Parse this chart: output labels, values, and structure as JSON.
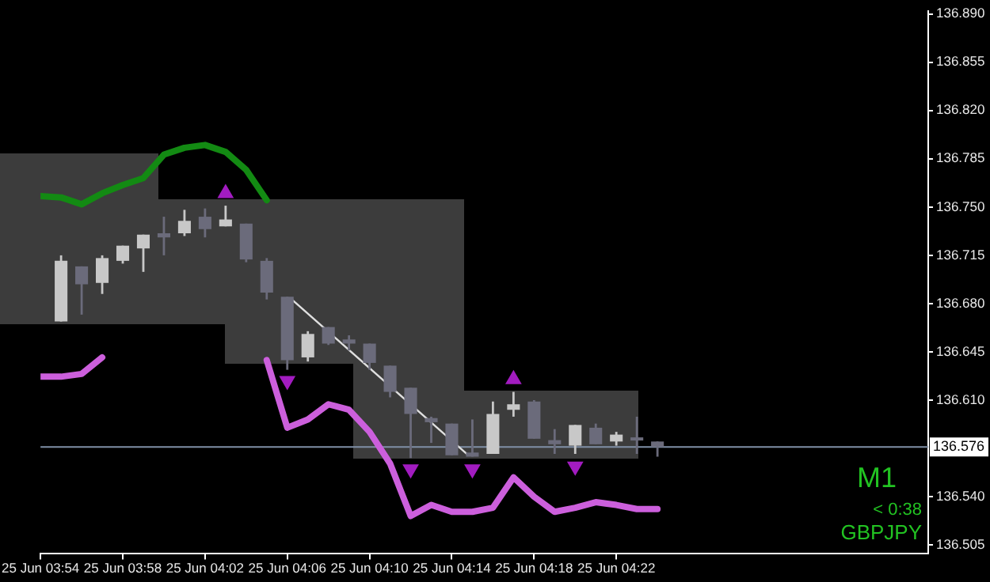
{
  "chart_data": {
    "type": "candlestick",
    "x": [
      "--06-25T03:55",
      "--06-25T03:56",
      "--06-25T03:57",
      "--06-25T03:58",
      "--06-25T03:59",
      "--06-25T04:00",
      "--06-25T04:01",
      "--06-25T04:02",
      "--06-25T04:03",
      "--06-25T04:04",
      "--06-25T04:05",
      "--06-25T04:06",
      "--06-25T04:07",
      "--06-25T04:08",
      "--06-25T04:09",
      "--06-25T04:10",
      "--06-25T04:11",
      "--06-25T04:12",
      "--06-25T04:13",
      "--06-25T04:14",
      "--06-25T04:15",
      "--06-25T04:16",
      "--06-25T04:17",
      "--06-25T04:18",
      "--06-25T04:19",
      "--06-25T04:20",
      "--06-25T04:21",
      "--06-25T04:22",
      "--06-25T04:23",
      "--06-25T04:24"
    ],
    "ohlc": [
      [
        136.667,
        136.715,
        136.667,
        136.711
      ],
      [
        136.707,
        136.707,
        136.672,
        136.694
      ],
      [
        136.695,
        136.715,
        136.687,
        136.713
      ],
      [
        136.711,
        136.722,
        136.709,
        136.722
      ],
      [
        136.72,
        136.73,
        136.703,
        136.73
      ],
      [
        136.731,
        136.743,
        136.715,
        136.728
      ],
      [
        136.731,
        136.748,
        136.729,
        136.74
      ],
      [
        136.743,
        136.749,
        136.728,
        136.734
      ],
      [
        136.736,
        136.751,
        136.736,
        136.741
      ],
      [
        136.738,
        136.738,
        136.71,
        136.712
      ],
      [
        136.711,
        136.713,
        136.683,
        136.688
      ],
      [
        136.685,
        136.685,
        136.632,
        136.639
      ],
      [
        136.641,
        136.66,
        136.638,
        136.658
      ],
      [
        136.663,
        136.663,
        136.65,
        136.651
      ],
      [
        136.654,
        136.657,
        136.646,
        136.651
      ],
      [
        136.651,
        136.651,
        136.632,
        136.637
      ],
      [
        136.635,
        136.635,
        136.612,
        136.616
      ],
      [
        136.619,
        136.619,
        136.568,
        136.6
      ],
      [
        136.597,
        136.598,
        136.579,
        136.594
      ],
      [
        136.593,
        136.593,
        136.57,
        136.57
      ],
      [
        136.572,
        136.596,
        136.569,
        136.569
      ],
      [
        136.571,
        136.609,
        136.571,
        136.6
      ],
      [
        136.603,
        136.616,
        136.598,
        136.607
      ],
      [
        136.609,
        136.61,
        136.582,
        136.582
      ],
      [
        136.581,
        136.589,
        136.571,
        136.578
      ],
      [
        136.577,
        136.592,
        136.571,
        136.592
      ],
      [
        136.59,
        136.593,
        136.578,
        136.578
      ],
      [
        136.58,
        136.587,
        136.577,
        136.585
      ],
      [
        136.583,
        136.598,
        136.571,
        136.581
      ],
      [
        136.58,
        136.58,
        136.569,
        136.576
      ]
    ],
    "colors": [
      "#c8c8c8",
      "#6b6b7b",
      "#c8c8c8",
      "#c8c8c8",
      "#c8c8c8",
      "#6b6b7b",
      "#c8c8c8",
      "#6b6b7b",
      "#c8c8c8",
      "#6b6b7b",
      "#6b6b7b",
      "#6b6b7b",
      "#c8c8c8",
      "#6b6b7b",
      "#6b6b7b",
      "#6b6b7b",
      "#6b6b7b",
      "#6b6b7b",
      "#6b6b7b",
      "#6b6b7b",
      "#6b6b7b",
      "#c8c8c8",
      "#c8c8c8",
      "#6b6b7b",
      "#6b6b7b",
      "#c8c8c8",
      "#6b6b7b",
      "#c8c8c8",
      "#6b6b7b",
      "#6b6b7b"
    ],
    "series": [
      {
        "type": "line",
        "color": "#138a13",
        "x": [
          "--06-25T03:54",
          "--06-25T03:55",
          "--06-25T03:56",
          "--06-25T03:57",
          "--06-25T03:58",
          "--06-25T03:59",
          "--06-25T04:00",
          "--06-25T04:01",
          "--06-25T04:02",
          "--06-25T04:03",
          "--06-25T04:04",
          "--06-25T04:05"
        ],
        "values": [
          136.758,
          136.757,
          136.752,
          136.76,
          136.766,
          136.771,
          136.788,
          136.793,
          136.795,
          136.79,
          136.777,
          136.755
        ]
      },
      {
        "type": "line",
        "color": "#cc5fdc",
        "x": [
          "--06-25T03:54",
          "--06-25T03:55",
          "--06-25T03:56",
          "--06-25T03:57",
          "--06-25T03:58",
          "--06-25T04:05",
          "--06-25T04:06",
          "--06-25T04:07",
          "--06-25T04:08",
          "--06-25T04:09",
          "--06-25T04:10",
          "--06-25T04:11",
          "--06-25T04:12",
          "--06-25T04:13",
          "--06-25T04:14",
          "--06-25T04:15",
          "--06-25T04:16",
          "--06-25T04:17",
          "--06-25T04:18",
          "--06-25T04:19",
          "--06-25T04:20",
          "--06-25T04:21",
          "--06-25T04:22",
          "--06-25T04:23",
          "--06-25T04:24"
        ],
        "values": [
          136.627,
          136.627,
          136.629,
          136.641,
          null,
          136.639,
          136.59,
          136.596,
          136.607,
          136.603,
          136.587,
          136.564,
          136.526,
          136.534,
          136.529,
          136.529,
          136.532,
          136.554,
          136.54,
          136.529,
          136.532,
          136.536,
          136.534,
          136.531,
          136.531
        ]
      },
      {
        "type": "line",
        "color": "#e0e0e0",
        "x": [
          "--06-25T04:06:13",
          "--06-25T04:14:44"
        ],
        "values": [
          136.683,
          136.571
        ]
      },
      {
        "type": "scatter",
        "marker": "triangle",
        "color": "#a21cc0",
        "x": [
          "--06-25T04:03",
          "--06-25T04:17"
        ],
        "values": [
          136.76,
          136.625
        ]
      },
      {
        "type": "scatter",
        "marker": "triangle",
        "color": "#a21cc0",
        "x": [
          "--06-25T04:06",
          "--06-25T04:12",
          "--06-25T04:15",
          "--06-25T04:20"
        ],
        "values": [
          136.624,
          136.56,
          136.56,
          136.562
        ]
      }
    ],
    "ref_lines": [
      {
        "axis": "y",
        "value": 136.576,
        "label": "136.576",
        "color": "#7f8fa6"
      }
    ],
    "xlim": [
      "--06-25T03:54",
      "--06-25T04:37:10"
    ],
    "xticks": [
      {
        "value": "--06-25T03:54",
        "label": "25 Jun 03:54"
      },
      {
        "value": "--06-25T03:58",
        "label": "25 Jun 03:58"
      },
      {
        "value": "--06-25T04:02",
        "label": "25 Jun 04:02"
      },
      {
        "value": "--06-25T04:06",
        "label": "25 Jun 04:06"
      },
      {
        "value": "--06-25T04:10",
        "label": "25 Jun 04:10"
      },
      {
        "value": "--06-25T04:14",
        "label": "25 Jun 04:14"
      },
      {
        "value": "--06-25T04:18",
        "label": "25 Jun 04:18"
      },
      {
        "value": "--06-25T04:22",
        "label": "25 Jun 04:22"
      }
    ],
    "ylim": [
      136.499,
      136.892
    ],
    "yticks": [
      136.505,
      {
        "value": 136.54,
        "label": "136.540"
      },
      {
        "value": 136.61,
        "label": "136.610"
      },
      136.645,
      {
        "value": 136.68,
        "label": "136.680"
      },
      136.715,
      {
        "value": 136.75,
        "label": "136.750"
      },
      136.785,
      {
        "value": 136.82,
        "label": "136.820"
      },
      136.855,
      {
        "value": 136.89,
        "label": "136.890"
      }
    ],
    "annotations": [
      "M1",
      "< 0:38",
      "GBPJPY"
    ]
  }
}
